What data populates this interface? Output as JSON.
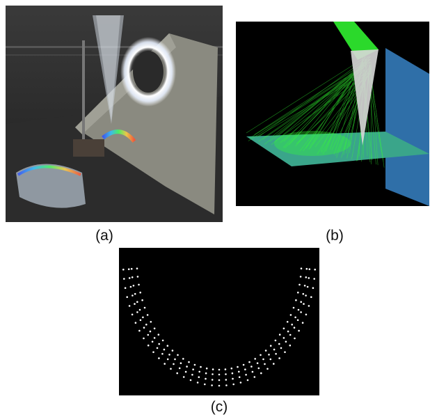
{
  "figure": {
    "panels": [
      {
        "id": "a",
        "caption": "(a)",
        "content": "photograph"
      },
      {
        "id": "b",
        "caption": "(b)",
        "content": "ray-trace-render"
      },
      {
        "id": "c",
        "caption": "(c)",
        "content": "dot-pattern"
      }
    ]
  },
  "colors": {
    "ray_green": "#33ff33",
    "floor_plane": "#3aa58a",
    "wall_plane": "#2f6fa8",
    "photo_background": "#2a2a2a",
    "dot_white": "#ffffff"
  }
}
